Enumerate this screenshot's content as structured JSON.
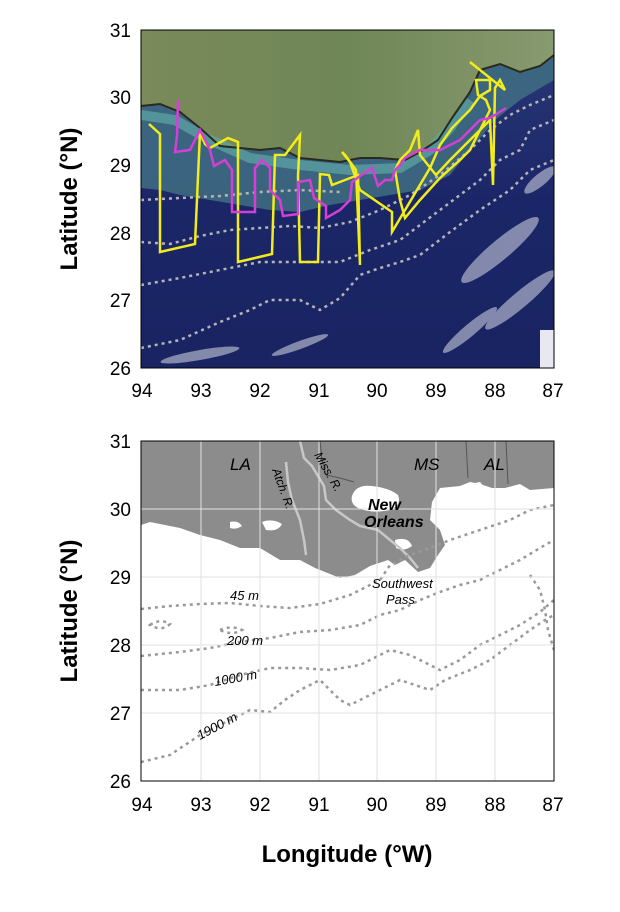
{
  "top_map": {
    "y_axis_label": "Latitude (°N)",
    "x_ticks": [
      "94",
      "93",
      "92",
      "91",
      "90",
      "89",
      "88",
      "87"
    ],
    "y_ticks": [
      "31",
      "30",
      "29",
      "28",
      "27",
      "26"
    ],
    "legend_colors": {
      "track_yellow": "#f2ec1a",
      "track_magenta": "#d63fd6",
      "isobath": "#b5b5b5"
    }
  },
  "bottom_map": {
    "x_axis_label": "Longitude (°W)",
    "y_axis_label": "Latitude (°N)",
    "x_ticks": [
      "94",
      "93",
      "92",
      "91",
      "90",
      "89",
      "88",
      "87"
    ],
    "y_ticks": [
      "31",
      "30",
      "29",
      "28",
      "27",
      "26"
    ],
    "state_labels": [
      "LA",
      "MS",
      "AL"
    ],
    "city_label_1": "New",
    "city_label_2": "Orleans",
    "river_label_miss": "Miss. R.",
    "river_label_atch": "Atch. R.",
    "pass_label_1": "Southwest",
    "pass_label_2": "Pass",
    "depth_labels": [
      "45 m",
      "200 m",
      "1000 m",
      "1900 m"
    ],
    "land_color": "#8c8c8c",
    "water_color": "#ffffff"
  }
}
